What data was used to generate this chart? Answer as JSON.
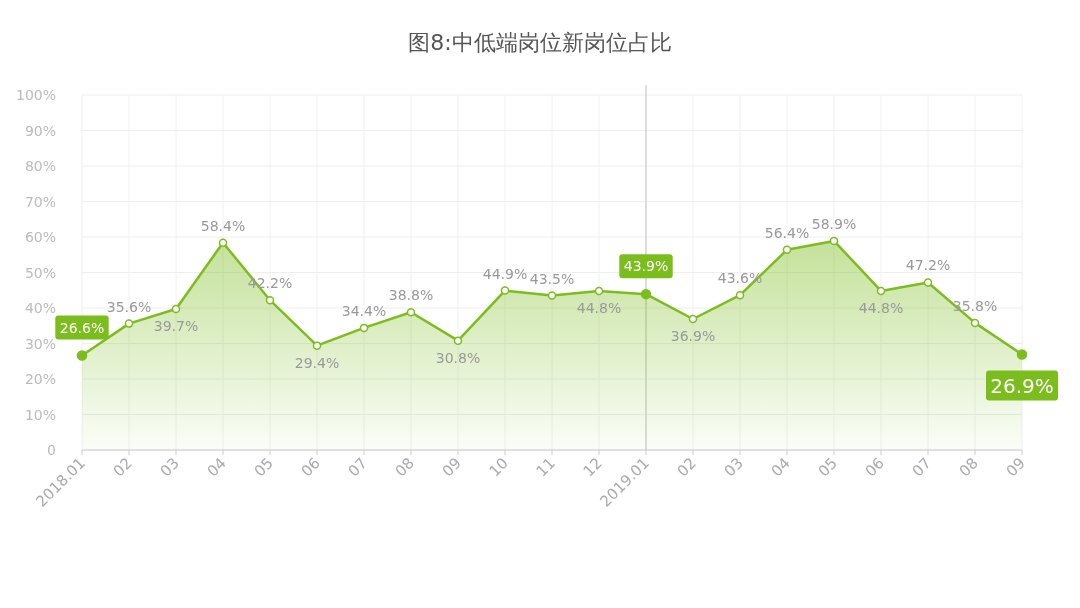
{
  "chart_data": {
    "type": "area",
    "title": "图8:中低端岗位新岗位占比",
    "categories": [
      "2018.01",
      "02",
      "03",
      "04",
      "05",
      "06",
      "07",
      "08",
      "09",
      "10",
      "11",
      "12",
      "2019.01",
      "02",
      "03",
      "04",
      "05",
      "06",
      "07",
      "08",
      "09"
    ],
    "values": [
      26.6,
      35.6,
      39.7,
      58.4,
      42.2,
      29.4,
      34.4,
      38.8,
      30.8,
      44.9,
      43.5,
      44.8,
      43.9,
      36.9,
      43.6,
      56.4,
      58.9,
      44.8,
      47.2,
      35.8,
      26.9
    ],
    "value_labels": [
      "26.6%",
      "35.6%",
      "39.7%",
      "58.4%",
      "42.2%",
      "29.4%",
      "34.4%",
      "38.8%",
      "30.8%",
      "44.9%",
      "43.5%",
      "44.8%",
      "43.9%",
      "36.9%",
      "43.6%",
      "56.4%",
      "58.9%",
      "44.8%",
      "47.2%",
      "35.8%",
      "26.9%"
    ],
    "color": "#7cbd1e",
    "ylim": [
      0,
      100
    ],
    "yticks": [
      {
        "value": 0,
        "label": "0"
      },
      {
        "value": 10,
        "label": "10%"
      },
      {
        "value": 20,
        "label": "20%"
      },
      {
        "value": 30,
        "label": "30%"
      },
      {
        "value": 40,
        "label": "40%"
      },
      {
        "value": 50,
        "label": "50%"
      },
      {
        "value": 60,
        "label": "60%"
      },
      {
        "value": 70,
        "label": "70%"
      },
      {
        "value": 80,
        "label": "80%"
      },
      {
        "value": 90,
        "label": "90%"
      },
      {
        "value": 100,
        "label": "100%"
      }
    ],
    "ref_lines": [
      {
        "axis": "x",
        "value": "2019.01"
      }
    ],
    "grid": true,
    "marker": "circle"
  }
}
